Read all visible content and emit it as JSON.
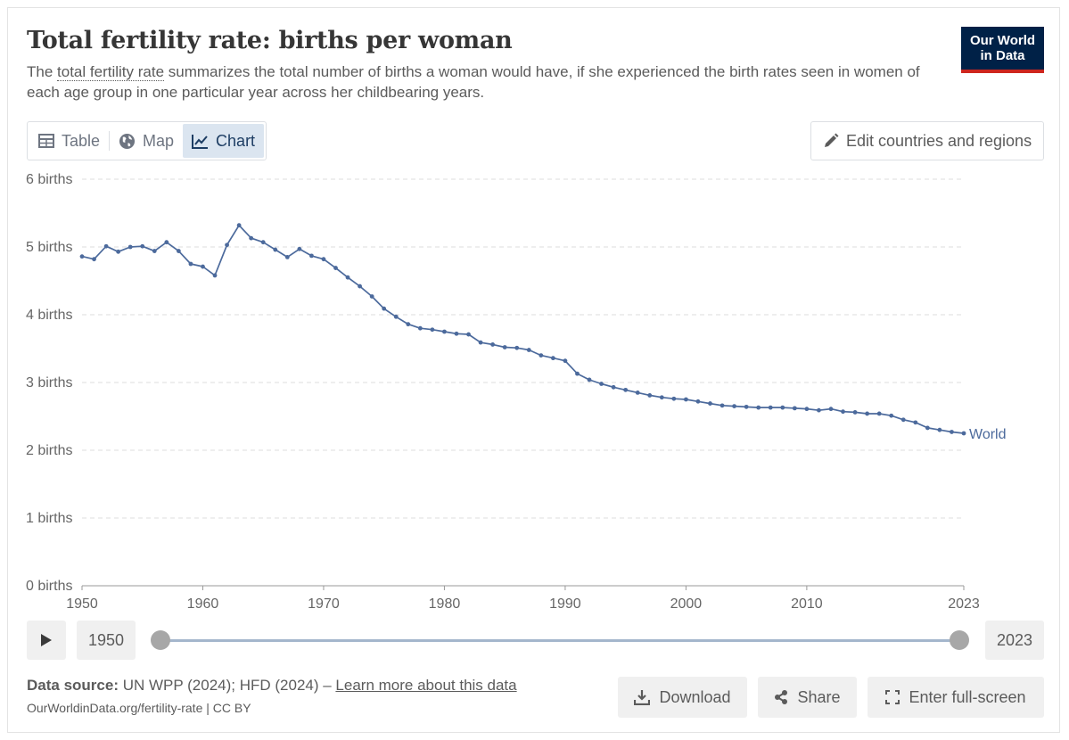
{
  "header": {
    "title": "Total fertility rate: births per woman",
    "subtitle_before": "The ",
    "subtitle_term": "total fertility rate",
    "subtitle_after": " summarizes the total number of births a woman would have, if she experienced the birth rates seen in women of each age group in one particular year across her childbearing years.",
    "logo_line1": "Our World",
    "logo_line2": "in Data"
  },
  "tabs": [
    {
      "label": "Table",
      "icon": "table-icon"
    },
    {
      "label": "Map",
      "icon": "globe-icon"
    },
    {
      "label": "Chart",
      "icon": "line-chart-icon",
      "active": true
    }
  ],
  "edit_button": {
    "label": "Edit countries and regions",
    "icon": "pencil-icon"
  },
  "timeline": {
    "start_label": "1950",
    "end_label": "2023",
    "play_icon": "play-icon"
  },
  "footer": {
    "source_label": "Data source:",
    "source_text": " UN WPP (2024); HFD (2024) – ",
    "source_link": "Learn more about this data",
    "url": "OurWorldinData.org/fertility-rate | CC BY",
    "download_label": "Download",
    "share_label": "Share",
    "fullscreen_label": "Enter full-screen"
  },
  "colors": {
    "series": "#4c6a9c",
    "logo_bg": "#002147",
    "logo_bar": "#ce261e",
    "active_tab": "#dbe5f0"
  },
  "chart_data": {
    "type": "line",
    "xlim": [
      1950,
      2023
    ],
    "ylim": [
      0,
      6
    ],
    "y_ticks": [
      0,
      1,
      2,
      3,
      4,
      5,
      6
    ],
    "y_tick_labels": [
      "0 births",
      "1 births",
      "2 births",
      "3 births",
      "4 births",
      "5 births",
      "6 births"
    ],
    "x_ticks": [
      1950,
      1960,
      1970,
      1980,
      1990,
      2000,
      2010,
      2023
    ],
    "x_tick_labels": [
      "1950",
      "1960",
      "1970",
      "1980",
      "1990",
      "2000",
      "2010",
      "2023"
    ],
    "grid": "horizontal dashed",
    "series": [
      {
        "name": "World",
        "x": [
          1950,
          1951,
          1952,
          1953,
          1954,
          1955,
          1956,
          1957,
          1958,
          1959,
          1960,
          1961,
          1962,
          1963,
          1964,
          1965,
          1966,
          1967,
          1968,
          1969,
          1970,
          1971,
          1972,
          1973,
          1974,
          1975,
          1976,
          1977,
          1978,
          1979,
          1980,
          1981,
          1982,
          1983,
          1984,
          1985,
          1986,
          1987,
          1988,
          1989,
          1990,
          1991,
          1992,
          1993,
          1994,
          1995,
          1996,
          1997,
          1998,
          1999,
          2000,
          2001,
          2002,
          2003,
          2004,
          2005,
          2006,
          2007,
          2008,
          2009,
          2010,
          2011,
          2012,
          2013,
          2014,
          2015,
          2016,
          2017,
          2018,
          2019,
          2020,
          2021,
          2022,
          2023
        ],
        "values": [
          4.86,
          4.82,
          5.01,
          4.93,
          5.0,
          5.01,
          4.94,
          5.07,
          4.94,
          4.75,
          4.71,
          4.58,
          5.03,
          5.32,
          5.13,
          5.07,
          4.96,
          4.85,
          4.97,
          4.87,
          4.82,
          4.69,
          4.55,
          4.42,
          4.27,
          4.09,
          3.97,
          3.86,
          3.8,
          3.78,
          3.75,
          3.72,
          3.71,
          3.59,
          3.56,
          3.52,
          3.51,
          3.48,
          3.4,
          3.36,
          3.32,
          3.13,
          3.04,
          2.98,
          2.93,
          2.89,
          2.85,
          2.81,
          2.78,
          2.76,
          2.75,
          2.72,
          2.69,
          2.66,
          2.65,
          2.64,
          2.63,
          2.63,
          2.63,
          2.62,
          2.61,
          2.59,
          2.61,
          2.57,
          2.56,
          2.54,
          2.54,
          2.51,
          2.45,
          2.41,
          2.33,
          2.3,
          2.27,
          2.25
        ]
      }
    ]
  }
}
